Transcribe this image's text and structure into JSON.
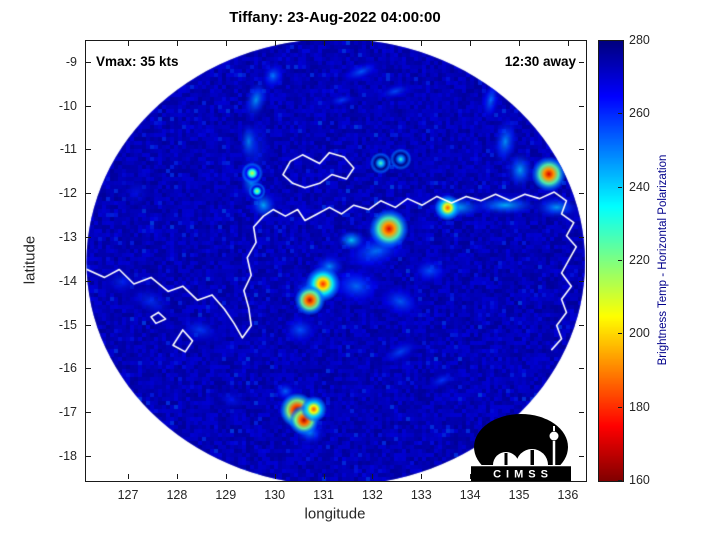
{
  "chart_data": {
    "type": "heatmap",
    "title": "Tiffany: 23-Aug-2022 04:00:00",
    "xlabel": "longitude",
    "ylabel": "latitude",
    "xlim": [
      126.12,
      136.35
    ],
    "ylim": [
      -18.55,
      -8.5
    ],
    "x_ticks": [
      127,
      128,
      129,
      130,
      131,
      132,
      133,
      134,
      135,
      136
    ],
    "y_ticks": [
      -9,
      -10,
      -11,
      -12,
      -13,
      -14,
      -15,
      -16,
      -17,
      -18
    ],
    "grid": false,
    "legend": "none",
    "annotations": [
      {
        "text": "Vmax: 35 kts",
        "position": "top-left"
      },
      {
        "text": "12:30 away",
        "position": "top-right"
      }
    ],
    "colorbar": {
      "label": "Brightness Temp - Horizontal Polarization",
      "min": 160,
      "max": 280,
      "ticks": [
        160,
        180,
        200,
        220,
        240,
        260,
        280
      ],
      "colormap": "jet",
      "position": "right"
    },
    "swath": {
      "center_lon": 131.23,
      "center_lat": -13.55,
      "radius_deg": 5.1,
      "background_temp": 275
    },
    "cloud_patches": [
      {
        "lon": 129.6,
        "lat": -9.85,
        "rx": 0.25,
        "ry": 0.5,
        "rot": 15,
        "temp": 244
      },
      {
        "lon": 129.45,
        "lat": -10.8,
        "rx": 0.2,
        "ry": 0.45,
        "rot": 0,
        "temp": 241
      },
      {
        "lon": 129.5,
        "lat": -11.7,
        "rx": 0.22,
        "ry": 0.45,
        "rot": -5,
        "temp": 239
      },
      {
        "lon": 129.75,
        "lat": -12.25,
        "rx": 0.28,
        "ry": 0.35,
        "rot": -25,
        "temp": 242
      },
      {
        "lon": 129.6,
        "lat": -11.0,
        "rx": 0.5,
        "ry": 1.3,
        "rot": 5,
        "temp": 258,
        "alpha": 0.45
      },
      {
        "lon": 129.95,
        "lat": -9.3,
        "rx": 0.3,
        "ry": 0.4,
        "rot": 20,
        "temp": 250
      },
      {
        "lon": 131.75,
        "lat": -9.2,
        "rx": 0.55,
        "ry": 0.25,
        "rot": -20,
        "temp": 253
      },
      {
        "lon": 132.45,
        "lat": -9.65,
        "rx": 0.5,
        "ry": 0.22,
        "rot": -15,
        "temp": 255
      },
      {
        "lon": 131.35,
        "lat": -9.85,
        "rx": 0.4,
        "ry": 0.2,
        "rot": -10,
        "temp": 257
      },
      {
        "lon": 134.4,
        "lat": -9.85,
        "rx": 0.22,
        "ry": 0.6,
        "rot": 12,
        "temp": 250
      },
      {
        "lon": 134.7,
        "lat": -10.8,
        "rx": 0.28,
        "ry": 0.6,
        "rot": 8,
        "temp": 246
      },
      {
        "lon": 135.0,
        "lat": -11.45,
        "rx": 0.3,
        "ry": 0.45,
        "rot": 0,
        "temp": 243
      },
      {
        "lon": 133.7,
        "lat": -12.3,
        "rx": 0.6,
        "ry": 0.26,
        "rot": 0,
        "temp": 240
      },
      {
        "lon": 134.7,
        "lat": -12.25,
        "rx": 0.7,
        "ry": 0.24,
        "rot": 0,
        "temp": 241
      },
      {
        "lon": 135.75,
        "lat": -12.3,
        "rx": 0.5,
        "ry": 0.28,
        "rot": 0,
        "temp": 244
      },
      {
        "lon": 133.5,
        "lat": -12.3,
        "rx": 0.25,
        "ry": 0.18,
        "rot": 0,
        "temp": 232
      },
      {
        "lon": 135.6,
        "lat": -11.6,
        "rx": 0.3,
        "ry": 0.26,
        "rot": 0,
        "temp": 240
      },
      {
        "lon": 132.05,
        "lat": -13.3,
        "rx": 0.85,
        "ry": 0.5,
        "rot": -15,
        "temp": 250
      },
      {
        "lon": 131.65,
        "lat": -14.1,
        "rx": 0.7,
        "ry": 0.55,
        "rot": 10,
        "temp": 251
      },
      {
        "lon": 132.55,
        "lat": -14.45,
        "rx": 0.6,
        "ry": 0.45,
        "rot": 20,
        "temp": 253
      },
      {
        "lon": 132.25,
        "lat": -12.85,
        "rx": 0.45,
        "ry": 0.3,
        "rot": 0,
        "temp": 241
      },
      {
        "lon": 131.55,
        "lat": -13.05,
        "rx": 0.3,
        "ry": 0.25,
        "rot": 0,
        "temp": 238
      },
      {
        "lon": 133.15,
        "lat": -13.75,
        "rx": 0.5,
        "ry": 0.4,
        "rot": 0,
        "temp": 254
      },
      {
        "lon": 131.1,
        "lat": -13.65,
        "rx": 0.35,
        "ry": 0.3,
        "rot": 0,
        "temp": 246
      },
      {
        "lon": 130.8,
        "lat": -14.2,
        "rx": 0.45,
        "ry": 0.4,
        "rot": 0,
        "temp": 243
      },
      {
        "lon": 130.5,
        "lat": -17.05,
        "rx": 0.45,
        "ry": 0.38,
        "rot": 0,
        "temp": 240
      },
      {
        "lon": 130.7,
        "lat": -17.45,
        "rx": 0.35,
        "ry": 0.3,
        "rot": 0,
        "temp": 247
      },
      {
        "lon": 130.2,
        "lat": -16.5,
        "rx": 0.3,
        "ry": 0.3,
        "rot": 0,
        "temp": 252
      },
      {
        "lon": 127.45,
        "lat": -14.45,
        "rx": 0.7,
        "ry": 0.45,
        "rot": 25,
        "temp": 258,
        "alpha": 0.7
      },
      {
        "lon": 128.45,
        "lat": -15.1,
        "rx": 0.6,
        "ry": 0.4,
        "rot": 10,
        "temp": 257,
        "alpha": 0.8
      },
      {
        "lon": 126.85,
        "lat": -14.0,
        "rx": 0.5,
        "ry": 0.4,
        "rot": 0,
        "temp": 259,
        "alpha": 0.7
      },
      {
        "lon": 132.55,
        "lat": -15.6,
        "rx": 0.6,
        "ry": 0.3,
        "rot": -25,
        "temp": 256
      },
      {
        "lon": 133.4,
        "lat": -16.25,
        "rx": 0.45,
        "ry": 0.25,
        "rot": -20,
        "temp": 258
      },
      {
        "lon": 129.1,
        "lat": -16.7,
        "rx": 0.5,
        "ry": 0.35,
        "rot": 20,
        "temp": 261,
        "alpha": 0.6
      },
      {
        "lon": 127.15,
        "lat": -11.95,
        "rx": 0.45,
        "ry": 0.6,
        "rot": 0,
        "temp": 262,
        "alpha": 0.55
      },
      {
        "lon": 130.5,
        "lat": -15.1,
        "rx": 0.5,
        "ry": 0.45,
        "rot": 0,
        "temp": 254
      }
    ],
    "hotspots": [
      {
        "lon": 135.59,
        "lat": -11.54,
        "core_temp": 170,
        "radius_px": 8
      },
      {
        "lon": 132.32,
        "lat": -12.79,
        "core_temp": 171,
        "radius_px": 9
      },
      {
        "lon": 130.97,
        "lat": -14.05,
        "core_temp": 180,
        "radius_px": 8
      },
      {
        "lon": 130.7,
        "lat": -14.42,
        "core_temp": 168,
        "radius_px": 7
      },
      {
        "lon": 130.44,
        "lat": -16.93,
        "core_temp": 163,
        "radius_px": 8
      },
      {
        "lon": 130.58,
        "lat": -17.16,
        "core_temp": 166,
        "radius_px": 7
      },
      {
        "lon": 130.78,
        "lat": -16.91,
        "core_temp": 185,
        "radius_px": 6
      },
      {
        "lon": 133.52,
        "lat": -12.31,
        "core_temp": 186,
        "radius_px": 6
      },
      {
        "lon": 129.52,
        "lat": -11.52,
        "core_temp": 210,
        "radius_px": 5
      },
      {
        "lon": 129.62,
        "lat": -11.93,
        "core_temp": 215,
        "radius_px": 4
      },
      {
        "lon": 132.15,
        "lat": -11.29,
        "core_temp": 226,
        "radius_px": 5
      },
      {
        "lon": 132.56,
        "lat": -11.2,
        "core_temp": 230,
        "radius_px": 5
      }
    ],
    "coastlines": [
      [
        [
          126.12,
          -13.71
        ],
        [
          126.5,
          -13.9
        ],
        [
          126.8,
          -13.72
        ],
        [
          127.1,
          -14.05
        ],
        [
          127.45,
          -13.9
        ],
        [
          127.8,
          -14.22
        ],
        [
          128.1,
          -14.1
        ],
        [
          128.4,
          -14.42
        ],
        [
          128.7,
          -14.3
        ],
        [
          128.95,
          -14.62
        ],
        [
          129.15,
          -14.95
        ],
        [
          129.32,
          -15.28
        ],
        [
          129.5,
          -15.0
        ],
        [
          129.45,
          -14.6
        ],
        [
          129.35,
          -14.2
        ],
        [
          129.5,
          -13.85
        ],
        [
          129.42,
          -13.45
        ],
        [
          129.6,
          -13.1
        ],
        [
          129.55,
          -12.75
        ],
        [
          129.75,
          -12.5
        ],
        [
          129.95,
          -12.35
        ],
        [
          130.2,
          -12.5
        ],
        [
          130.45,
          -12.35
        ],
        [
          130.6,
          -12.6
        ],
        [
          130.85,
          -12.45
        ],
        [
          131.1,
          -12.3
        ],
        [
          131.35,
          -12.45
        ],
        [
          131.6,
          -12.25
        ],
        [
          131.9,
          -12.35
        ],
        [
          132.15,
          -12.15
        ],
        [
          132.45,
          -12.3
        ],
        [
          132.7,
          -12.1
        ],
        [
          133.0,
          -12.25
        ],
        [
          133.3,
          -12.05
        ],
        [
          133.6,
          -12.2
        ],
        [
          133.9,
          -12.05
        ],
        [
          134.2,
          -12.15
        ],
        [
          134.5,
          -12.0
        ],
        [
          134.8,
          -12.15
        ],
        [
          135.1,
          -12.0
        ],
        [
          135.4,
          -12.1
        ],
        [
          135.7,
          -11.95
        ],
        [
          135.95,
          -12.15
        ],
        [
          135.85,
          -12.45
        ],
        [
          136.1,
          -12.65
        ],
        [
          135.95,
          -12.95
        ],
        [
          136.15,
          -13.2
        ],
        [
          136.0,
          -13.5
        ],
        [
          135.85,
          -13.8
        ],
        [
          136.05,
          -14.1
        ],
        [
          135.85,
          -14.4
        ],
        [
          135.95,
          -14.7
        ],
        [
          135.75,
          -15.0
        ],
        [
          135.85,
          -15.3
        ],
        [
          135.65,
          -15.55
        ]
      ],
      [
        [
          130.15,
          -11.55
        ],
        [
          130.3,
          -11.25
        ],
        [
          130.55,
          -11.1
        ],
        [
          130.9,
          -11.3
        ],
        [
          131.1,
          -11.05
        ],
        [
          131.4,
          -11.15
        ],
        [
          131.6,
          -11.4
        ],
        [
          131.45,
          -11.65
        ],
        [
          131.15,
          -11.55
        ],
        [
          130.9,
          -11.75
        ],
        [
          130.6,
          -11.85
        ],
        [
          130.35,
          -11.75
        ],
        [
          130.15,
          -11.55
        ]
      ],
      [
        [
          128.1,
          -15.1
        ],
        [
          128.3,
          -15.35
        ],
        [
          128.15,
          -15.6
        ],
        [
          127.9,
          -15.45
        ],
        [
          128.1,
          -15.1
        ]
      ],
      [
        [
          127.6,
          -14.7
        ],
        [
          127.75,
          -14.85
        ],
        [
          127.55,
          -14.95
        ],
        [
          127.45,
          -14.8
        ],
        [
          127.6,
          -14.7
        ]
      ]
    ]
  },
  "logo": {
    "text": "CIMSS"
  }
}
